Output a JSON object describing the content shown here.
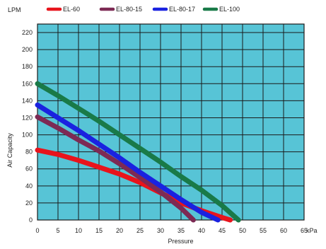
{
  "chart_data": {
    "type": "line",
    "title": "",
    "xlabel": "Pressure",
    "ylabel": "Air Capacity",
    "x_unit": "kPa",
    "y_unit": "LPM",
    "xlim": [
      0,
      65
    ],
    "ylim": [
      0,
      230
    ],
    "x_ticks": [
      0,
      5,
      10,
      15,
      20,
      25,
      30,
      35,
      40,
      45,
      50,
      55,
      60,
      65
    ],
    "y_ticks": [
      0,
      20,
      40,
      60,
      80,
      100,
      120,
      140,
      160,
      180,
      200,
      220
    ],
    "x_tick_labels": [
      "0",
      "5",
      "10",
      "15",
      "20",
      "25",
      "30",
      "35",
      "40",
      "45",
      "50",
      "55",
      "60",
      "65"
    ],
    "y_tick_labels": [
      "0",
      "20",
      "40",
      "60",
      "80",
      "100",
      "120",
      "140",
      "160",
      "180",
      "200",
      "220"
    ],
    "grid": true,
    "legend_position": "top",
    "plot_background": "#57c4d6",
    "grid_color": "#1a1a1a",
    "series": [
      {
        "name": "EL-60",
        "color": "#e8141c",
        "points": [
          [
            0,
            82
          ],
          [
            5,
            77
          ],
          [
            10,
            70
          ],
          [
            15,
            62
          ],
          [
            20,
            54
          ],
          [
            25,
            44
          ],
          [
            30,
            32
          ],
          [
            35,
            20
          ],
          [
            40,
            11
          ],
          [
            45,
            3
          ],
          [
            47,
            0
          ]
        ]
      },
      {
        "name": "EL-80-15",
        "color": "#7d2a54",
        "points": [
          [
            0,
            121
          ],
          [
            5,
            108
          ],
          [
            10,
            94
          ],
          [
            15,
            81
          ],
          [
            20,
            66
          ],
          [
            25,
            50
          ],
          [
            30,
            33
          ],
          [
            35,
            14
          ],
          [
            38,
            0
          ]
        ]
      },
      {
        "name": "EL-80-17",
        "color": "#1a22e0",
        "points": [
          [
            0,
            135
          ],
          [
            5,
            120
          ],
          [
            10,
            105
          ],
          [
            15,
            89
          ],
          [
            20,
            73
          ],
          [
            25,
            56
          ],
          [
            30,
            40
          ],
          [
            35,
            24
          ],
          [
            40,
            9
          ],
          [
            44,
            0
          ]
        ]
      },
      {
        "name": "EL-100",
        "color": "#197a48",
        "points": [
          [
            0,
            160
          ],
          [
            5,
            146
          ],
          [
            10,
            131
          ],
          [
            15,
            116
          ],
          [
            20,
            100
          ],
          [
            25,
            84
          ],
          [
            30,
            68
          ],
          [
            35,
            51
          ],
          [
            40,
            35
          ],
          [
            45,
            17
          ],
          [
            49,
            0
          ]
        ]
      }
    ]
  }
}
